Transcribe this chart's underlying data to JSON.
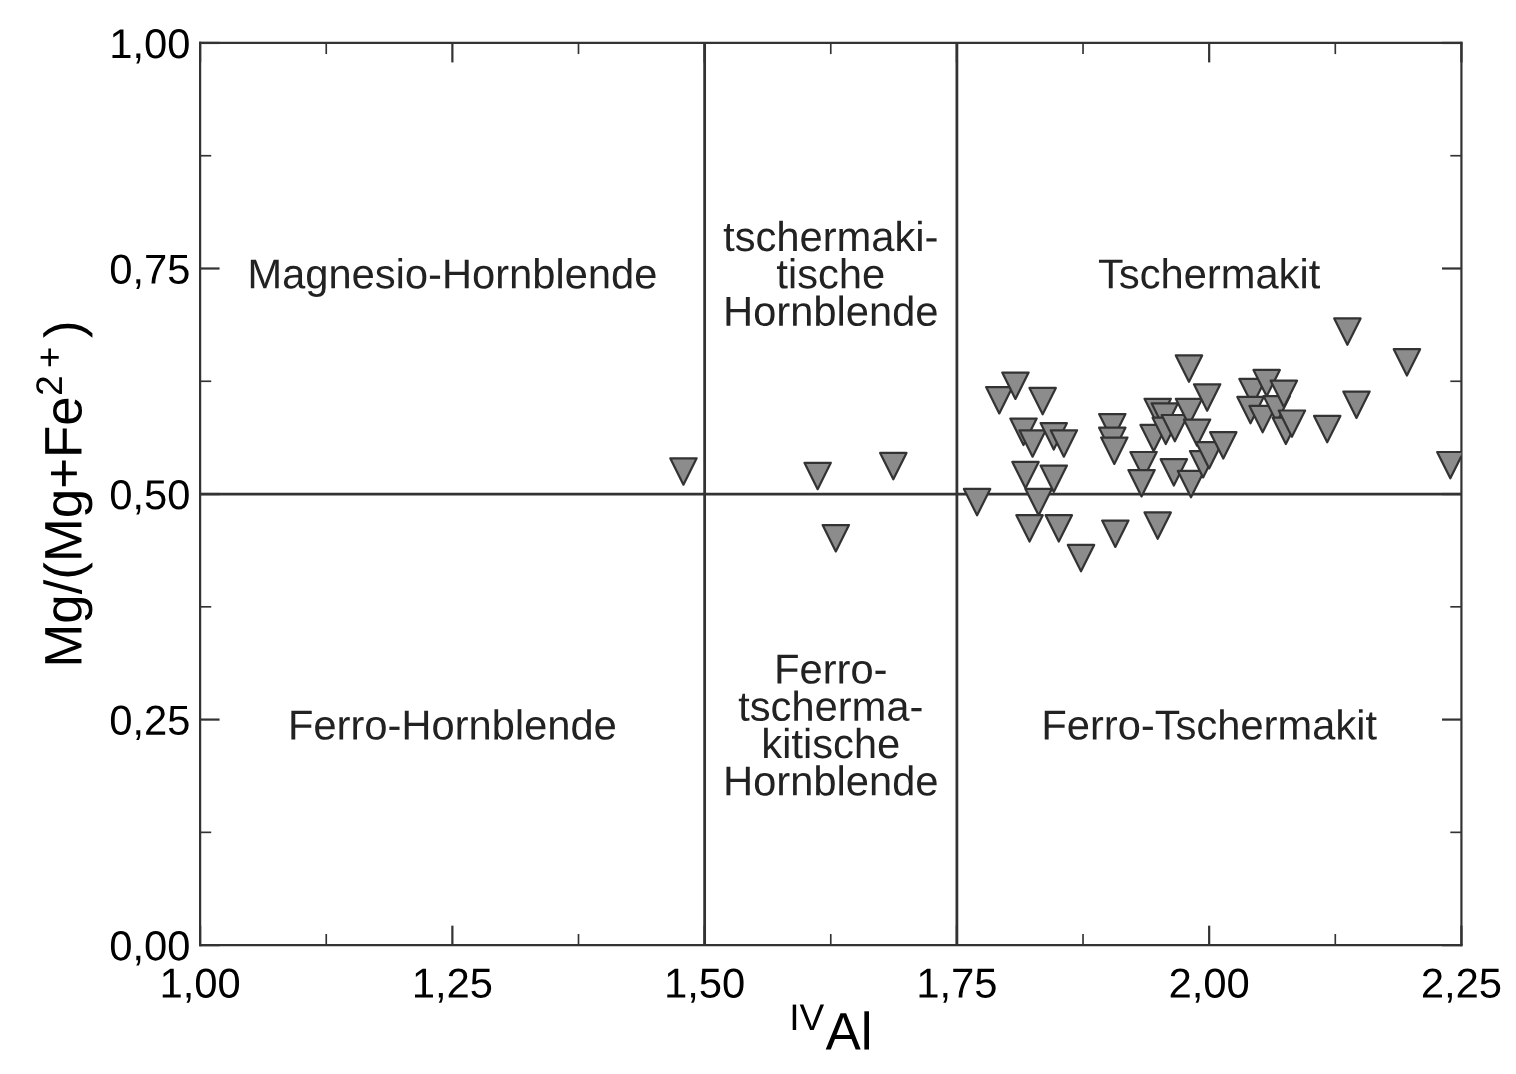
{
  "chart_data": {
    "type": "scatter",
    "xlabel": "$^{IV}$Al",
    "ylabel": "Mg/(Mg+Fe$^{2+}$)",
    "xlim": [
      1.0,
      2.25
    ],
    "ylim": [
      0.0,
      1.0
    ],
    "xticks": [
      {
        "value": 1.0,
        "label": "1,00"
      },
      {
        "value": 1.25,
        "label": "1,25"
      },
      {
        "value": 1.5,
        "label": "1,50"
      },
      {
        "value": 1.75,
        "label": "1,75"
      },
      {
        "value": 2.0,
        "label": "2,00"
      },
      {
        "value": 2.25,
        "label": "2,25"
      }
    ],
    "yticks": [
      {
        "value": 0.0,
        "label": "0,00"
      },
      {
        "value": 0.25,
        "label": "0,25"
      },
      {
        "value": 0.5,
        "label": "0,50"
      },
      {
        "value": 0.75,
        "label": "0,75"
      },
      {
        "value": 1.0,
        "label": "1,00"
      }
    ],
    "grid": false,
    "legend": false,
    "marker": "triangle",
    "ref_lines": [
      {
        "axis": "x",
        "value": 1.5,
        "color": "#333333"
      },
      {
        "axis": "x",
        "value": 1.75,
        "color": "#333333"
      },
      {
        "axis": "y",
        "value": 0.5,
        "color": "#333333"
      }
    ],
    "annotations": [
      "Magnesio-Hornblende",
      "tschermaki-\ntische\nHornblende",
      "Tschermakit",
      "Ferro-Hornblende",
      "Ferro-\ntscherma-\nkitische\nHornblende",
      "Ferro-Tschermakit"
    ],
    "series": [
      {
        "color": "#8c8c8c",
        "x": [
          1.479,
          1.612,
          1.63,
          1.687,
          1.77,
          1.792,
          1.808,
          1.835,
          1.816,
          1.825,
          1.818,
          1.831,
          1.822,
          1.846,
          1.856,
          1.846,
          1.851,
          1.873,
          1.904,
          1.904,
          1.906,
          1.907,
          1.935,
          1.933,
          1.949,
          1.949,
          1.945,
          1.956,
          1.957,
          1.966,
          1.965,
          1.98,
          1.98,
          1.988,
          1.982,
          1.994,
          1.998,
          2.0,
          2.014,
          2.043,
          2.041,
          2.057,
          2.053,
          2.067,
          2.074,
          2.076,
          2.082,
          2.117,
          2.137,
          2.146,
          2.196,
          2.239
        ],
        "values": [
          0.525,
          0.52,
          0.451,
          0.531,
          0.491,
          0.604,
          0.62,
          0.603,
          0.569,
          0.556,
          0.521,
          0.491,
          0.462,
          0.564,
          0.556,
          0.517,
          0.462,
          0.429,
          0.574,
          0.559,
          0.548,
          0.456,
          0.532,
          0.512,
          0.465,
          0.591,
          0.562,
          0.586,
          0.57,
          0.573,
          0.524,
          0.639,
          0.591,
          0.568,
          0.511,
          0.533,
          0.607,
          0.543,
          0.554,
          0.613,
          0.593,
          0.623,
          0.583,
          0.594,
          0.611,
          0.57,
          0.578,
          0.572,
          0.68,
          0.599,
          0.646,
          0.532
        ]
      }
    ]
  }
}
